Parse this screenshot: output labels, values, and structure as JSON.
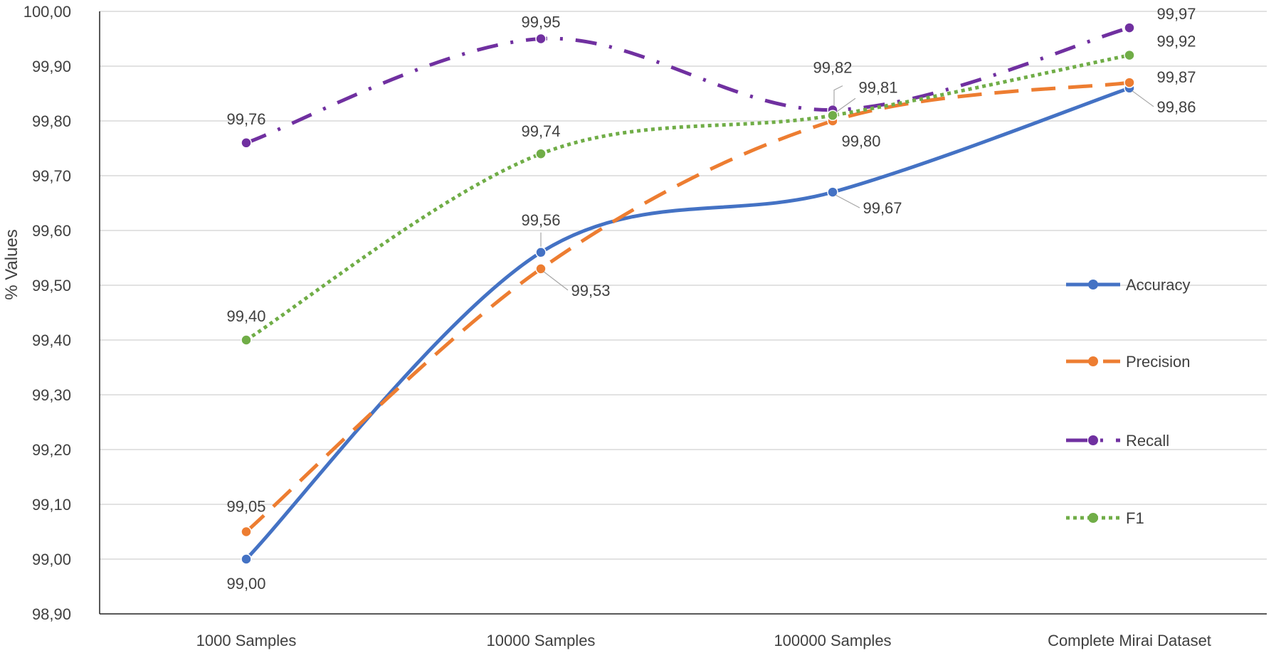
{
  "chart_data": {
    "type": "line",
    "title": "",
    "xlabel": "",
    "ylabel": "% Values",
    "ylim": [
      98.9,
      100.0
    ],
    "ytick_step": 0.1,
    "ytick_labels": [
      "98,90",
      "99,00",
      "99,10",
      "99,20",
      "99,30",
      "99,40",
      "99,50",
      "99,60",
      "99,70",
      "99,80",
      "99,90",
      "100,00"
    ],
    "categories": [
      "1000 Samples",
      "10000 Samples",
      "100000 Samples",
      "Complete Mirai Dataset"
    ],
    "grid": true,
    "legend_position": "right",
    "series": [
      {
        "name": "Accuracy",
        "color": "#4472c4",
        "dash": "solid",
        "values": [
          99.0,
          99.56,
          99.67,
          99.86
        ],
        "labels": [
          "99,00",
          "99,56",
          "99,67",
          "99,86"
        ]
      },
      {
        "name": "Precision",
        "color": "#ed7d31",
        "dash": "long-dash",
        "values": [
          99.05,
          99.53,
          99.8,
          99.87
        ],
        "labels": [
          "99,05",
          "99,53",
          "99,80",
          "99,87"
        ]
      },
      {
        "name": "Recall",
        "color": "#7030a0",
        "dash": "dash-dot",
        "values": [
          99.76,
          99.95,
          99.82,
          99.97
        ],
        "labels": [
          "99,76",
          "99,95",
          "99,82",
          "99,97"
        ]
      },
      {
        "name": "F1",
        "color": "#70ad47",
        "dash": "dotted",
        "values": [
          99.4,
          99.74,
          99.81,
          99.92
        ],
        "labels": [
          "99,40",
          "99,74",
          "99,81",
          "99,92"
        ]
      }
    ]
  }
}
